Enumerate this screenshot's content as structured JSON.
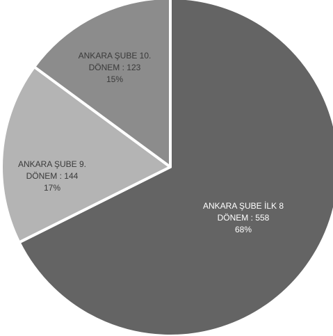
{
  "chart_data": {
    "type": "pie",
    "title": "",
    "slices": [
      {
        "line1": "ANKARA ŞUBE İLK 8",
        "line2": "DÖNEM : 558",
        "line3": "68%",
        "value": 558,
        "percent": 68,
        "color": "#646464",
        "label_color": "#ffffff"
      },
      {
        "line1": "ANKARA ŞUBE 9.",
        "line2": "DÖNEM : 144",
        "line3": "17%",
        "value": 144,
        "percent": 17,
        "color": "#b4b4b4",
        "label_color": "#3a3a3a"
      },
      {
        "line1": "ANKARA ŞUBE 10.",
        "line2": "DÖNEM : 123",
        "line3": "15%",
        "value": 123,
        "percent": 15,
        "color": "#8c8c8c",
        "label_color": "#3a3a3a"
      }
    ]
  }
}
